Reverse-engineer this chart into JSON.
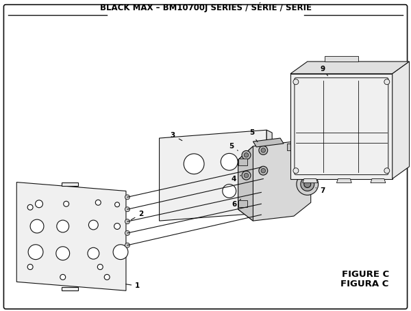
{
  "title": "BLACK MAX – BM10700J SERIES / SÉRIE / SERIE",
  "figure_label": "FIGURE C",
  "figura_label": "FIGURA C",
  "bg_color": "#ffffff",
  "border_color": "#111111",
  "line_color": "#111111",
  "title_fontsize": 8.5,
  "label_fontsize": 7.5,
  "figure_c_fontsize": 8.5,
  "fig_width": 6.0,
  "fig_height": 4.55,
  "dpi": 100
}
